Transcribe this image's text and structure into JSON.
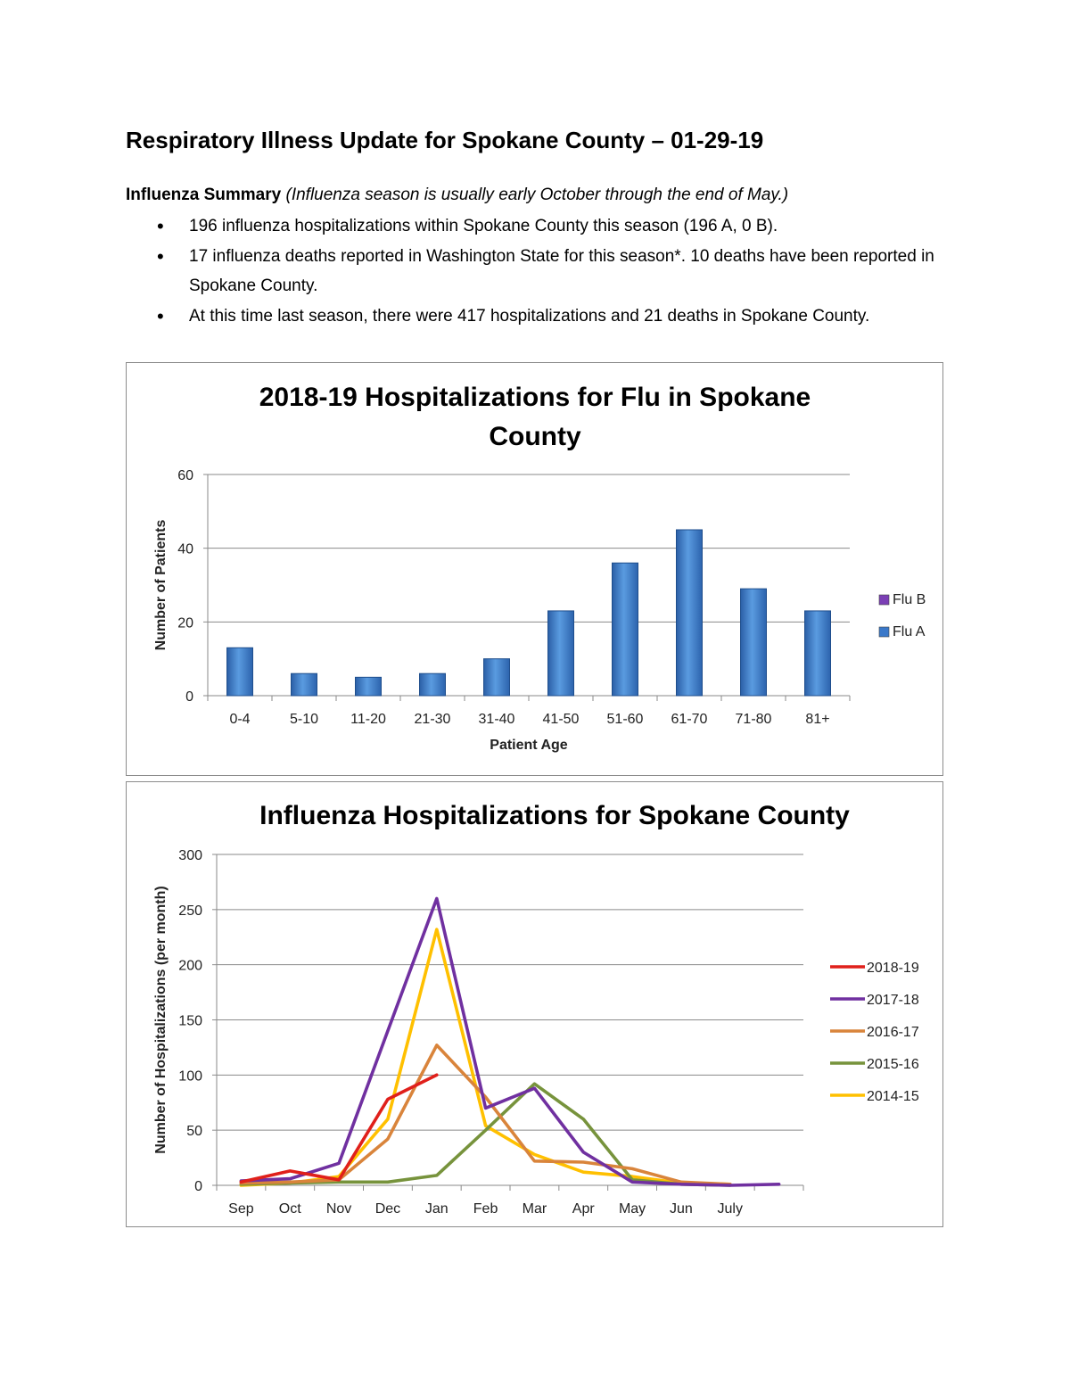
{
  "title": "Respiratory Illness Update for Spokane County – 01-29-19",
  "summary": {
    "heading": "Influenza Summary",
    "note": "(Influenza season is usually early October through the end of May.)",
    "bullets": [
      "196 influenza hospitalizations within Spokane County this season (196 A, 0 B).",
      "17 influenza deaths reported in Washington State for this season*. 10 deaths have been reported in Spokane County.",
      "At this time last season, there were 417 hospitalizations and 21 deaths in Spokane County."
    ]
  },
  "chart_data": [
    {
      "type": "bar",
      "title": "2018-19 Hospitalizations for Flu in Spokane County",
      "xlabel": "Patient Age",
      "ylabel": "Number of Patients",
      "ylim": [
        0,
        60
      ],
      "yticks": [
        0,
        20,
        40,
        60
      ],
      "categories": [
        "0-4",
        "5-10",
        "11-20",
        "21-30",
        "31-40",
        "41-50",
        "51-60",
        "61-70",
        "71-80",
        "81+"
      ],
      "series": [
        {
          "name": "Flu B",
          "color": "#7b3fb5",
          "values": [
            0,
            0,
            0,
            0,
            0,
            0,
            0,
            0,
            0,
            0
          ]
        },
        {
          "name": "Flu A",
          "color": "#3a78c9",
          "values": [
            13,
            6,
            5,
            6,
            10,
            23,
            36,
            45,
            29,
            23
          ]
        }
      ],
      "legend": "right",
      "grid": true
    },
    {
      "type": "line",
      "title": "Influenza Hospitalizations for Spokane County",
      "xlabel": "",
      "ylabel": "Number of Hospitalizations (per month)",
      "ylim": [
        0,
        300
      ],
      "yticks": [
        0,
        50,
        100,
        150,
        200,
        250,
        300
      ],
      "categories": [
        "Sep",
        "Oct",
        "Nov",
        "Dec",
        "Jan",
        "Feb",
        "Mar",
        "Apr",
        "May",
        "Jun",
        "July",
        ""
      ],
      "series": [
        {
          "name": "2018-19",
          "color": "#e0201b",
          "values": [
            3,
            13,
            5,
            78,
            100,
            null,
            null,
            null,
            null,
            null,
            null,
            null
          ]
        },
        {
          "name": "2017-18",
          "color": "#7030a0",
          "values": [
            4,
            6,
            20,
            140,
            260,
            70,
            88,
            30,
            3,
            1,
            0,
            1
          ]
        },
        {
          "name": "2016-17",
          "color": "#d9843b",
          "values": [
            2,
            3,
            5,
            42,
            127,
            80,
            22,
            21,
            15,
            3,
            1,
            null
          ]
        },
        {
          "name": "2015-16",
          "color": "#77933c",
          "values": [
            1,
            2,
            3,
            3,
            9,
            50,
            92,
            60,
            5,
            1,
            0,
            null
          ]
        },
        {
          "name": "2014-15",
          "color": "#ffc000",
          "values": [
            0,
            2,
            8,
            60,
            232,
            54,
            28,
            12,
            8,
            2,
            1,
            null
          ]
        }
      ],
      "legend": "right",
      "grid": true
    }
  ]
}
